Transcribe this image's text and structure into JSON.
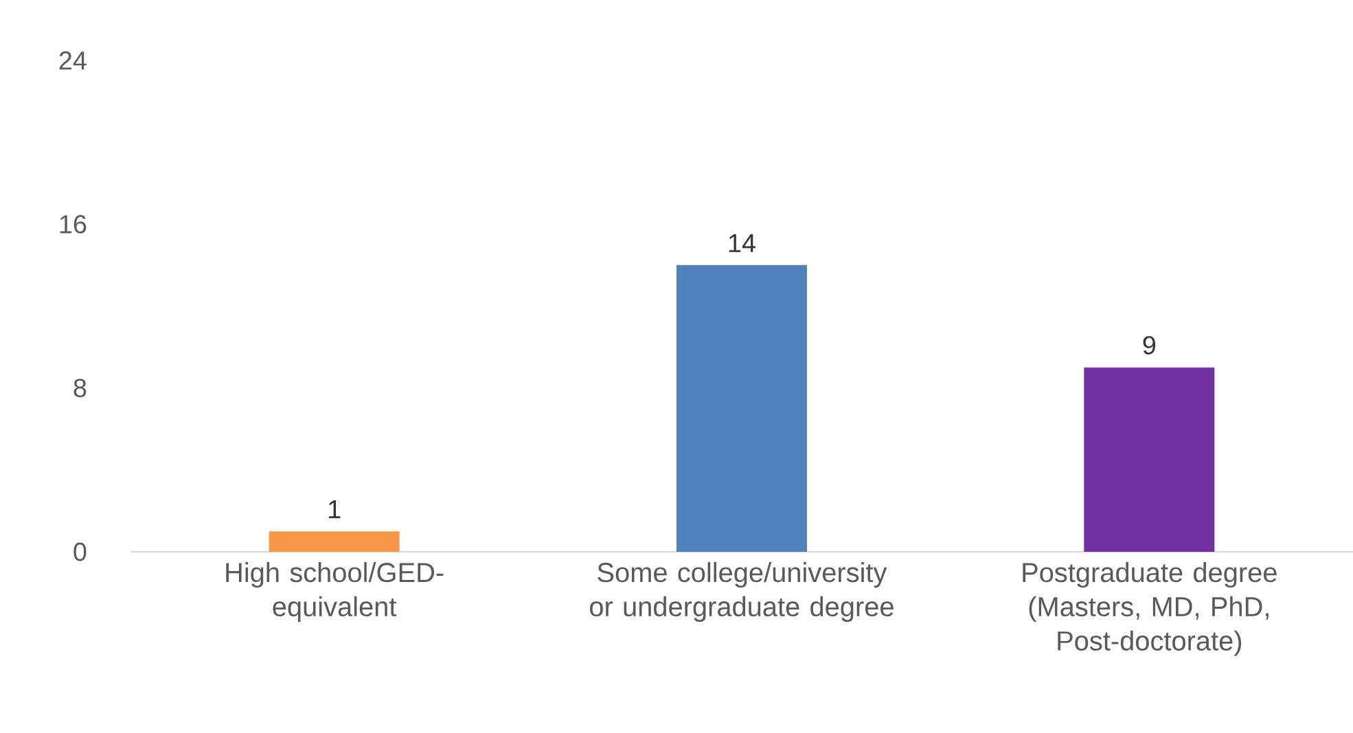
{
  "chart_data": {
    "type": "bar",
    "categories": [
      "High school/GED-equivalent",
      "Some college/university or undergraduate degree",
      "Postgraduate degree (Masters, MD, PhD, Post-doctorate)"
    ],
    "values": [
      1,
      14,
      9
    ],
    "colors": [
      "#f79646",
      "#4f81bd",
      "#7030a0"
    ],
    "ylim": [
      0,
      24
    ],
    "yticks": [
      0,
      8,
      16,
      24
    ],
    "data_labels": true
  }
}
